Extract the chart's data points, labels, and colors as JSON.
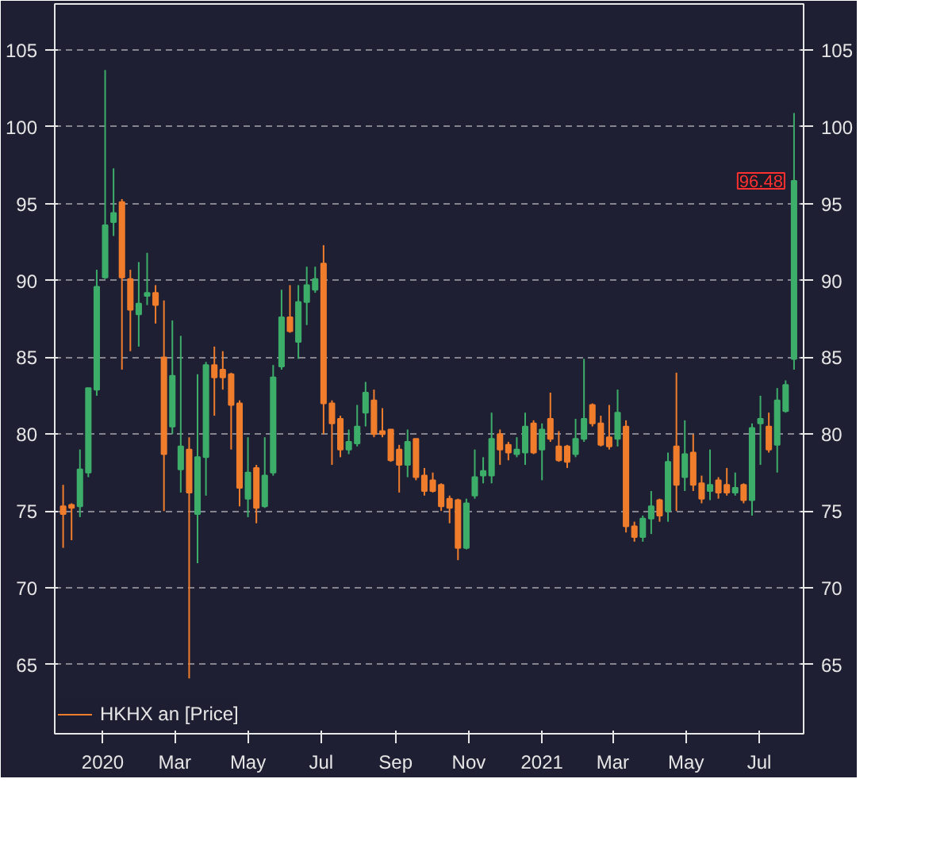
{
  "chart_data": {
    "type": "candlestick",
    "x": [
      "2019-11-29",
      "2019-12-06",
      "2019-12-13",
      "2019-12-20",
      "2019-12-27",
      "2020-01-03",
      "2020-01-10",
      "2020-01-17",
      "2020-01-24",
      "2020-01-31",
      "2020-02-07",
      "2020-02-14",
      "2020-02-21",
      "2020-02-28",
      "2020-03-06",
      "2020-03-13",
      "2020-03-20",
      "2020-03-27",
      "2020-04-03",
      "2020-04-10",
      "2020-04-17",
      "2020-04-24",
      "2020-05-01",
      "2020-05-08",
      "2020-05-15",
      "2020-05-22",
      "2020-05-29",
      "2020-06-05",
      "2020-06-12",
      "2020-06-19",
      "2020-06-26",
      "2020-07-03",
      "2020-07-10",
      "2020-07-17",
      "2020-07-24",
      "2020-07-31",
      "2020-08-07",
      "2020-08-14",
      "2020-08-21",
      "2020-08-28",
      "2020-09-04",
      "2020-09-11",
      "2020-09-18",
      "2020-09-25",
      "2020-10-02",
      "2020-10-09",
      "2020-10-16",
      "2020-10-23",
      "2020-10-30",
      "2020-11-06",
      "2020-11-13",
      "2020-11-20",
      "2020-11-27",
      "2020-12-04",
      "2020-12-11",
      "2020-12-18",
      "2020-12-25",
      "2021-01-01",
      "2021-01-08",
      "2021-01-15",
      "2021-01-22",
      "2021-01-29",
      "2021-02-05",
      "2021-02-12",
      "2021-02-19",
      "2021-02-26",
      "2021-03-05",
      "2021-03-12",
      "2021-03-19",
      "2021-03-26",
      "2021-04-02",
      "2021-04-09",
      "2021-04-16",
      "2021-04-23",
      "2021-04-30",
      "2021-05-07",
      "2021-05-14",
      "2021-05-21",
      "2021-05-28",
      "2021-06-04",
      "2021-06-11",
      "2021-06-18",
      "2021-06-25",
      "2021-07-02",
      "2021-07-09",
      "2021-07-16",
      "2021-07-23",
      "2021-07-30"
    ],
    "series": [
      {
        "name": "HKHX an [Price]",
        "ohlc": [
          [
            75.3,
            76.7,
            72.6,
            74.8
          ],
          [
            75.4,
            75.5,
            73.1,
            75.2
          ],
          [
            75.3,
            79.0,
            74.6,
            77.7
          ],
          [
            77.5,
            83.0,
            77.2,
            83.0
          ],
          [
            82.9,
            90.7,
            82.5,
            89.6
          ],
          [
            90.2,
            103.7,
            90.1,
            93.6
          ],
          [
            93.8,
            97.3,
            92.9,
            94.4
          ],
          [
            95.1,
            95.3,
            84.2,
            90.2
          ],
          [
            90.1,
            90.7,
            85.4,
            88.1
          ],
          [
            87.8,
            91.2,
            85.7,
            88.5
          ],
          [
            89.0,
            91.8,
            88.4,
            89.2
          ],
          [
            89.2,
            89.7,
            87.2,
            88.4
          ],
          [
            85.0,
            88.7,
            75.0,
            78.7
          ],
          [
            80.5,
            87.4,
            80.0,
            83.8
          ],
          [
            77.7,
            86.4,
            76.2,
            79.2
          ],
          [
            79.0,
            79.8,
            64.1,
            76.2
          ],
          [
            74.8,
            83.9,
            71.6,
            78.5
          ],
          [
            78.5,
            84.7,
            76.0,
            84.5
          ],
          [
            84.5,
            85.7,
            81.2,
            83.7
          ],
          [
            84.2,
            85.4,
            82.9,
            83.7
          ],
          [
            83.9,
            84.0,
            79.0,
            81.9
          ],
          [
            82.0,
            82.2,
            75.3,
            76.5
          ],
          [
            75.8,
            79.8,
            74.6,
            77.5
          ],
          [
            77.8,
            78.0,
            74.2,
            75.2
          ],
          [
            75.3,
            79.8,
            75.2,
            77.3
          ],
          [
            77.5,
            84.5,
            77.3,
            83.7
          ],
          [
            84.4,
            89.4,
            84.2,
            87.6
          ],
          [
            87.6,
            89.7,
            86.6,
            86.7
          ],
          [
            86.0,
            89.7,
            84.9,
            88.6
          ],
          [
            88.6,
            90.9,
            87.1,
            89.7
          ],
          [
            89.4,
            90.9,
            89.2,
            90.1
          ],
          [
            91.1,
            92.3,
            80.0,
            82.0
          ],
          [
            82.0,
            82.2,
            78.0,
            80.7
          ],
          [
            81.0,
            81.2,
            78.5,
            79.0
          ],
          [
            79.0,
            80.3,
            78.7,
            79.5
          ],
          [
            79.4,
            81.9,
            79.2,
            80.5
          ],
          [
            81.4,
            83.4,
            80.5,
            82.7
          ],
          [
            82.2,
            82.9,
            79.8,
            80.0
          ],
          [
            80.2,
            81.7,
            79.8,
            80.0
          ],
          [
            80.3,
            80.3,
            78.2,
            78.3
          ],
          [
            79.0,
            79.3,
            76.2,
            78.0
          ],
          [
            78.0,
            80.3,
            77.2,
            79.5
          ],
          [
            79.7,
            79.7,
            77.0,
            77.2
          ],
          [
            77.3,
            77.8,
            76.0,
            76.3
          ],
          [
            77.0,
            77.5,
            76.2,
            76.3
          ],
          [
            76.7,
            76.8,
            75.0,
            75.3
          ],
          [
            75.8,
            76.0,
            74.2,
            75.2
          ],
          [
            75.7,
            75.8,
            71.8,
            72.6
          ],
          [
            72.6,
            75.8,
            72.5,
            75.5
          ],
          [
            76.0,
            79.0,
            75.8,
            77.2
          ],
          [
            77.3,
            78.5,
            76.8,
            77.6
          ],
          [
            77.3,
            81.4,
            76.8,
            79.7
          ],
          [
            80.0,
            80.3,
            78.0,
            79.0
          ],
          [
            79.3,
            79.5,
            78.3,
            78.8
          ],
          [
            78.7,
            79.8,
            78.5,
            79.0
          ],
          [
            78.8,
            81.4,
            78.0,
            80.5
          ],
          [
            80.7,
            80.9,
            78.7,
            78.8
          ],
          [
            79.0,
            80.7,
            77.0,
            80.3
          ],
          [
            81.0,
            82.7,
            79.5,
            79.7
          ],
          [
            79.2,
            80.2,
            78.2,
            78.3
          ],
          [
            79.2,
            79.3,
            77.8,
            78.2
          ],
          [
            78.7,
            81.0,
            78.5,
            79.7
          ],
          [
            79.7,
            84.9,
            79.5,
            81.0
          ],
          [
            81.9,
            82.0,
            80.5,
            80.7
          ],
          [
            80.7,
            81.2,
            79.2,
            79.3
          ],
          [
            79.8,
            81.9,
            79.0,
            79.2
          ],
          [
            79.7,
            82.9,
            79.2,
            81.4
          ],
          [
            80.5,
            80.9,
            73.6,
            74.0
          ],
          [
            74.0,
            74.3,
            73.0,
            73.3
          ],
          [
            73.3,
            74.7,
            73.0,
            74.5
          ],
          [
            74.5,
            76.3,
            73.5,
            75.3
          ],
          [
            75.7,
            75.8,
            74.3,
            74.7
          ],
          [
            75.0,
            78.8,
            74.3,
            78.2
          ],
          [
            79.2,
            84.0,
            75.0,
            76.7
          ],
          [
            77.2,
            80.9,
            76.3,
            78.7
          ],
          [
            78.8,
            80.0,
            76.3,
            76.7
          ],
          [
            76.8,
            77.3,
            75.5,
            75.8
          ],
          [
            76.3,
            79.0,
            75.7,
            76.7
          ],
          [
            77.0,
            77.2,
            75.8,
            76.2
          ],
          [
            76.7,
            77.8,
            76.0,
            76.2
          ],
          [
            76.2,
            77.5,
            76.0,
            76.5
          ],
          [
            76.7,
            76.8,
            75.5,
            75.7
          ],
          [
            75.7,
            80.7,
            74.7,
            80.4
          ],
          [
            80.7,
            82.5,
            78.0,
            81.0
          ],
          [
            80.5,
            81.4,
            78.8,
            79.0
          ],
          [
            79.3,
            83.0,
            77.5,
            82.2
          ],
          [
            81.5,
            83.5,
            81.4,
            83.2
          ],
          [
            84.9,
            100.9,
            84.2,
            96.48
          ]
        ]
      }
    ],
    "colors": [
      "#f07d2c",
      "#f07d2c",
      "#3dae6a",
      "#3dae6a",
      "#3dae6a",
      "#3dae6a",
      "#3dae6a",
      "#f07d2c",
      "#f07d2c",
      "#3dae6a",
      "#3dae6a",
      "#f07d2c",
      "#f07d2c",
      "#3dae6a",
      "#3dae6a",
      "#f07d2c",
      "#3dae6a",
      "#3dae6a",
      "#f07d2c",
      "#f07d2c",
      "#f07d2c",
      "#f07d2c",
      "#3dae6a",
      "#f07d2c",
      "#3dae6a",
      "#3dae6a",
      "#3dae6a",
      "#f07d2c",
      "#3dae6a",
      "#3dae6a",
      "#3dae6a",
      "#f07d2c",
      "#f07d2c",
      "#f07d2c",
      "#3dae6a",
      "#3dae6a",
      "#3dae6a",
      "#f07d2c",
      "#f07d2c",
      "#f07d2c",
      "#f07d2c",
      "#3dae6a",
      "#f07d2c",
      "#f07d2c",
      "#f07d2c",
      "#f07d2c",
      "#f07d2c",
      "#f07d2c",
      "#3dae6a",
      "#3dae6a",
      "#3dae6a",
      "#3dae6a",
      "#f07d2c",
      "#f07d2c",
      "#3dae6a",
      "#3dae6a",
      "#f07d2c",
      "#3dae6a",
      "#f07d2c",
      "#f07d2c",
      "#f07d2c",
      "#3dae6a",
      "#3dae6a",
      "#f07d2c",
      "#f07d2c",
      "#f07d2c",
      "#3dae6a",
      "#f07d2c",
      "#f07d2c",
      "#3dae6a",
      "#3dae6a",
      "#f07d2c",
      "#3dae6a",
      "#f07d2c",
      "#3dae6a",
      "#f07d2c",
      "#f07d2c",
      "#3dae6a",
      "#f07d2c",
      "#f07d2c",
      "#3dae6a",
      "#f07d2c",
      "#3dae6a",
      "#3dae6a",
      "#f07d2c",
      "#3dae6a",
      "#3dae6a",
      "#3dae6a"
    ],
    "annotations": [
      {
        "text": "96.48",
        "x": "2021-07-30",
        "y": 96.48
      }
    ],
    "xlim": [
      "2019-11-22",
      "2021-08-07"
    ],
    "xticks": [
      {
        "value": "2020-01",
        "label": "2020"
      },
      {
        "value": "2020-03",
        "label": "Mar"
      },
      {
        "value": "2020-05",
        "label": "May"
      },
      {
        "value": "2020-07",
        "label": "Jul"
      },
      {
        "value": "2020-09",
        "label": "Sep"
      },
      {
        "value": "2020-11",
        "label": "Nov"
      },
      {
        "value": "2021-01",
        "label": "2021"
      },
      {
        "value": "2021-03",
        "label": "Mar"
      },
      {
        "value": "2021-05",
        "label": "May"
      },
      {
        "value": "2021-07",
        "label": "Jul"
      }
    ],
    "ylim": [
      60.5,
      108
    ],
    "yticks": [
      65,
      70,
      75,
      80,
      85,
      90,
      95,
      100,
      105
    ],
    "y2lim": [
      60.5,
      108
    ],
    "y2ticks": [
      65,
      70,
      75,
      80,
      85,
      90,
      95,
      100,
      105
    ],
    "grid": "y",
    "legend": "bottom left"
  }
}
